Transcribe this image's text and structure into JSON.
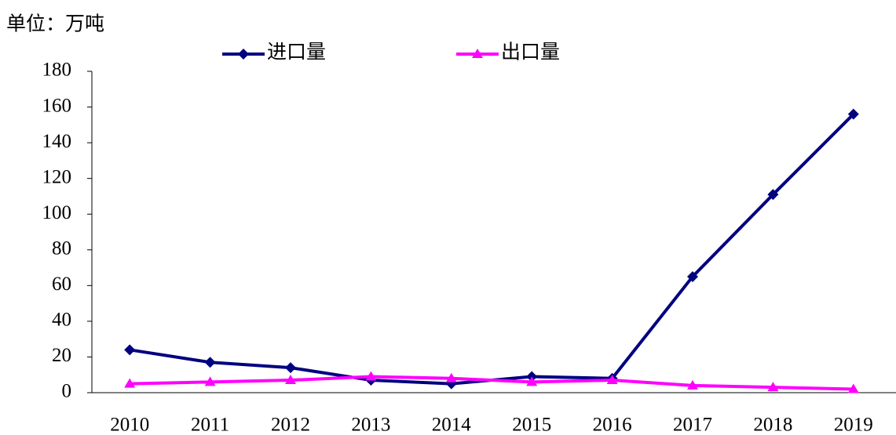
{
  "chart_data": {
    "type": "line",
    "unit_label": "单位：万吨",
    "categories": [
      "2010",
      "2011",
      "2012",
      "2013",
      "2014",
      "2015",
      "2016",
      "2017",
      "2018",
      "2019"
    ],
    "series": [
      {
        "name": "进口量",
        "color": "#000080",
        "marker": "diamond",
        "values": [
          24,
          17,
          14,
          7,
          5,
          9,
          8,
          65,
          111,
          156
        ]
      },
      {
        "name": "出口量",
        "color": "#ff00ff",
        "marker": "triangle",
        "values": [
          5,
          6,
          7,
          9,
          8,
          6,
          7,
          4,
          3,
          2
        ]
      }
    ],
    "ylim": [
      0,
      180
    ],
    "yticks": [
      0,
      20,
      40,
      60,
      80,
      100,
      120,
      140,
      160,
      180
    ],
    "legend": "top"
  }
}
